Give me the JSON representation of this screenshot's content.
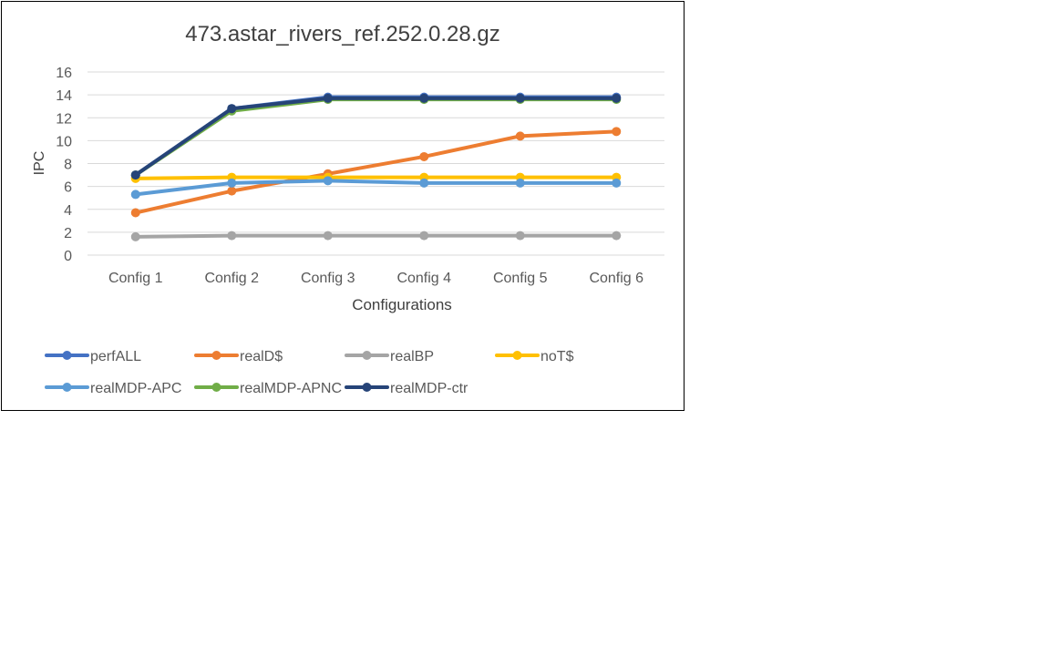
{
  "chart_data": {
    "type": "line",
    "title": "473.astar_rivers_ref.252.0.28.gz",
    "xlabel": "Configurations",
    "ylabel": "IPC",
    "ylim": [
      0,
      16
    ],
    "yticks": [
      "0",
      "2",
      "4",
      "6",
      "8",
      "10",
      "12",
      "14",
      "16"
    ],
    "grid": true,
    "legend_position": "bottom",
    "categories": [
      "Config 1",
      "Config 2",
      "Config 3",
      "Config 4",
      "Config 5",
      "Config 6"
    ],
    "series": [
      {
        "name": "perfALL",
        "color": "#4472C4",
        "values": [
          7.0,
          12.8,
          13.8,
          13.8,
          13.8,
          13.8
        ]
      },
      {
        "name": "realD$",
        "color": "#ED7D31",
        "values": [
          3.7,
          5.6,
          7.1,
          8.6,
          10.4,
          10.8
        ]
      },
      {
        "name": "realBP",
        "color": "#A5A5A5",
        "values": [
          1.6,
          1.7,
          1.7,
          1.7,
          1.7,
          1.7
        ]
      },
      {
        "name": "noT$",
        "color": "#FFC000",
        "values": [
          6.7,
          6.8,
          6.8,
          6.8,
          6.8,
          6.8
        ]
      },
      {
        "name": "realMDP-APC",
        "color": "#5B9BD5",
        "values": [
          5.3,
          6.3,
          6.5,
          6.3,
          6.3,
          6.3
        ]
      },
      {
        "name": "realMDP-APNC",
        "color": "#70AD47",
        "values": [
          7.0,
          12.6,
          13.6,
          13.6,
          13.6,
          13.6
        ]
      },
      {
        "name": "realMDP-ctr",
        "color": "#264478",
        "values": [
          7.0,
          12.8,
          13.7,
          13.7,
          13.7,
          13.7
        ]
      }
    ]
  }
}
